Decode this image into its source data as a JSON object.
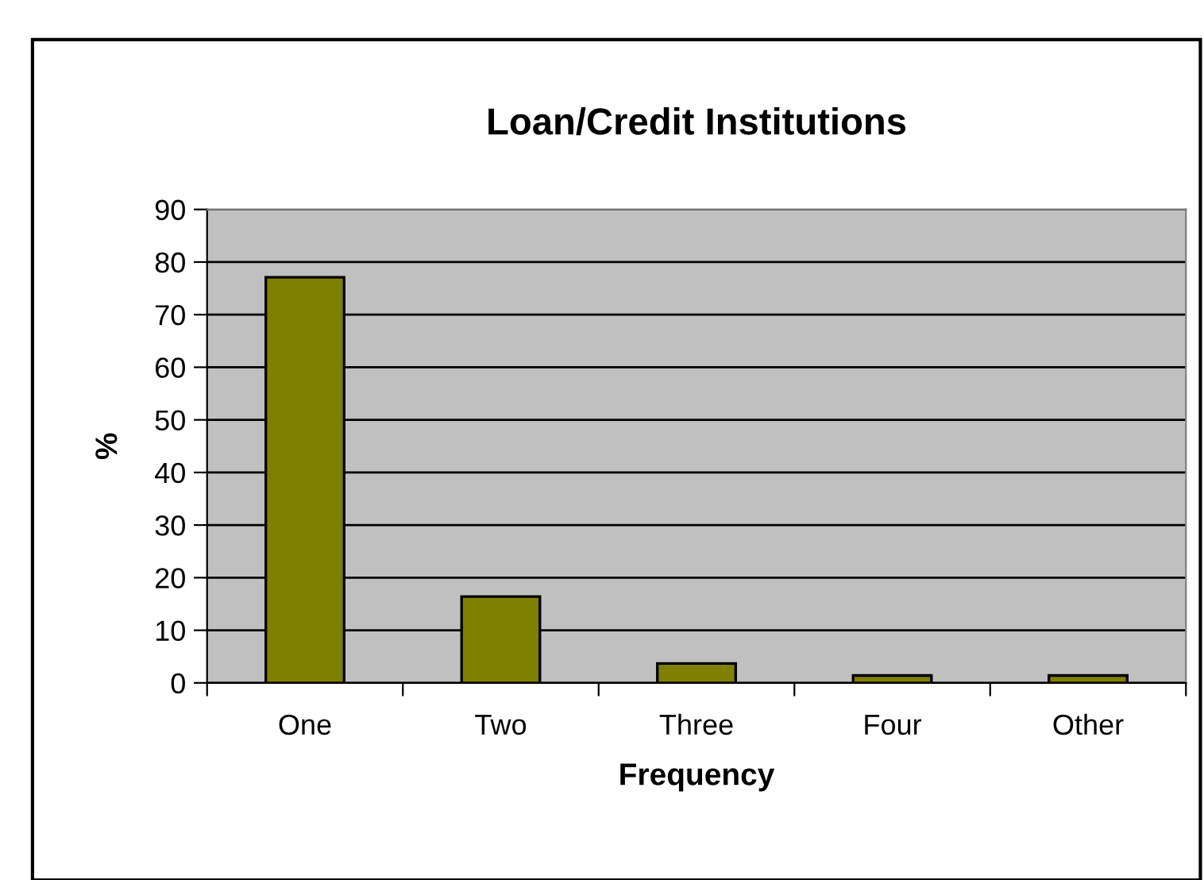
{
  "chart_data": {
    "type": "bar",
    "title": "Loan/Credit Institutions",
    "xlabel": "Frequency",
    "ylabel": "%",
    "categories": [
      "One",
      "Two",
      "Three",
      "Four",
      "Other"
    ],
    "values": [
      77.1,
      16.4,
      3.7,
      1.4,
      1.4
    ],
    "color": "#808000",
    "ylim": [
      0,
      90
    ],
    "yticks": [
      0,
      10,
      20,
      30,
      40,
      50,
      60,
      70,
      80,
      90
    ],
    "grid": "y",
    "legend": false
  }
}
